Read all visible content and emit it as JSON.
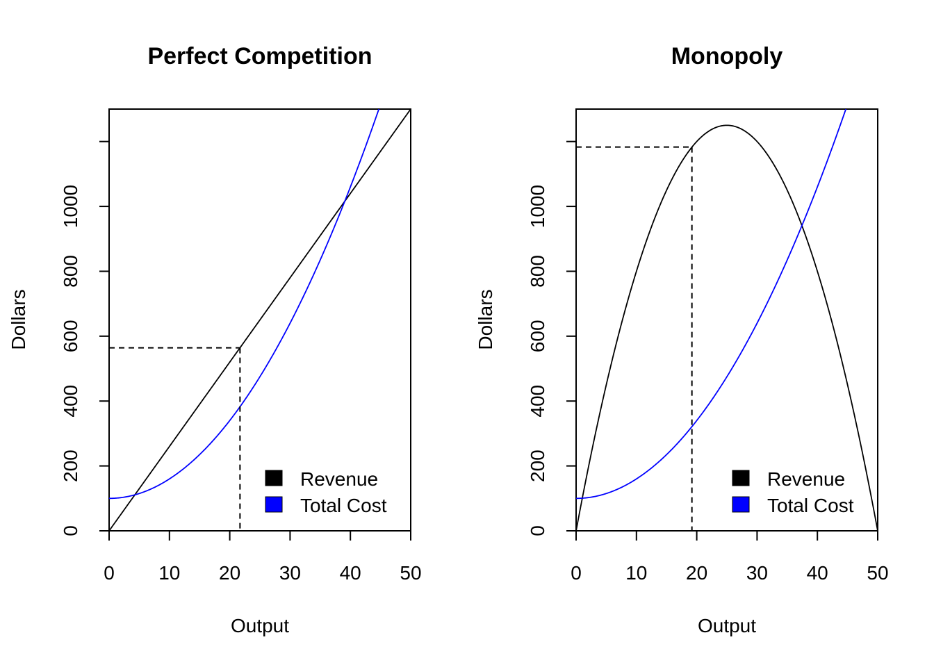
{
  "chart_data": [
    {
      "type": "line",
      "title": "Perfect Competition",
      "xlabel": "Output",
      "ylabel": "Dollars",
      "xlim": [
        0,
        50
      ],
      "ylim": [
        0,
        1300
      ],
      "xticks": [
        "0",
        "10",
        "20",
        "30",
        "40",
        "50"
      ],
      "yticks": [
        "0",
        "200",
        "400",
        "600",
        "800",
        "1000"
      ],
      "legend": {
        "position": "bottom-right",
        "entries": [
          "Revenue",
          "Total Cost"
        ]
      },
      "series": [
        {
          "name": "Revenue",
          "color": "#000000",
          "formula": "26*x",
          "x": [
            0,
            50
          ],
          "y": [
            0,
            1300
          ]
        },
        {
          "name": "Total Cost",
          "color": "#0000ff",
          "formula": "100 + 0.6*x^2",
          "x": [
            0,
            10,
            20,
            30,
            40,
            44.9
          ],
          "y": [
            100,
            160,
            340,
            640,
            1060,
            1310
          ]
        }
      ],
      "annotation": {
        "x": 21.7,
        "y": 564,
        "style": "dashed"
      }
    },
    {
      "type": "line",
      "title": "Monopoly",
      "xlabel": "Output",
      "ylabel": "Dollars",
      "xlim": [
        0,
        50
      ],
      "ylim": [
        0,
        1300
      ],
      "xticks": [
        "0",
        "10",
        "20",
        "30",
        "40",
        "50"
      ],
      "yticks": [
        "0",
        "200",
        "400",
        "600",
        "800",
        "1000"
      ],
      "legend": {
        "position": "bottom-right",
        "entries": [
          "Revenue",
          "Total Cost"
        ]
      },
      "series": [
        {
          "name": "Revenue",
          "color": "#000000",
          "formula": "100*x - 2*x^2",
          "x": [
            0,
            10,
            20,
            25,
            30,
            40,
            50
          ],
          "y": [
            0,
            800,
            1200,
            1250,
            1200,
            800,
            0
          ]
        },
        {
          "name": "Total Cost",
          "color": "#0000ff",
          "formula": "100 + 0.6*x^2",
          "x": [
            0,
            10,
            20,
            30,
            40,
            44.9
          ],
          "y": [
            100,
            160,
            340,
            640,
            1060,
            1310
          ]
        }
      ],
      "annotation": {
        "x": 19.2,
        "y": 1183,
        "style": "dashed"
      }
    }
  ],
  "colors": {
    "revenue": "#000000",
    "total_cost": "#0000ff"
  }
}
